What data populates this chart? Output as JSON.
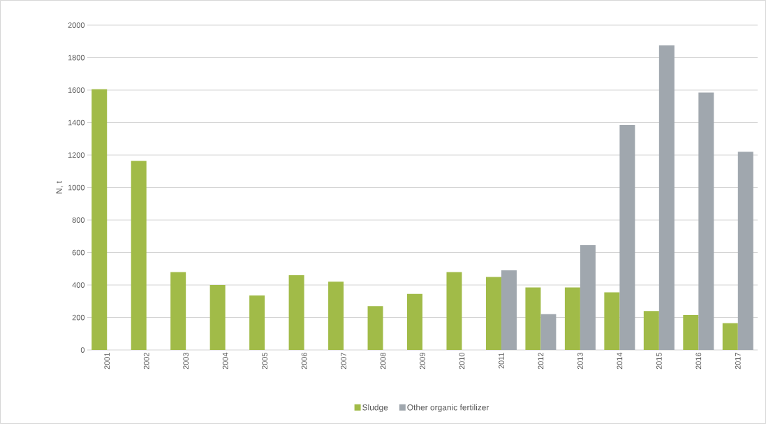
{
  "chart_data": {
    "type": "bar",
    "ylabel": "N, t",
    "categories": [
      "2001",
      "2002",
      "2003",
      "2004",
      "2005",
      "2006",
      "2007",
      "2008",
      "2009",
      "2010",
      "2011",
      "2012",
      "2013",
      "2014",
      "2015",
      "2016",
      "2017"
    ],
    "series": [
      {
        "name": "Sludge",
        "color": "#a1bb48",
        "values": [
          1605,
          1165,
          480,
          400,
          335,
          460,
          420,
          270,
          345,
          480,
          450,
          385,
          385,
          355,
          240,
          215,
          165
        ]
      },
      {
        "name": "Other organic fertilizer",
        "color": "#a0a7ae",
        "values": [
          null,
          null,
          null,
          null,
          null,
          null,
          null,
          null,
          null,
          null,
          490,
          220,
          645,
          1385,
          1875,
          1585,
          1220
        ]
      }
    ],
    "ylim": [
      0,
      2000
    ],
    "yticks": [
      0,
      200,
      400,
      600,
      800,
      1000,
      1200,
      1400,
      1600,
      1800,
      2000
    ],
    "grid": "y",
    "legend": "bottom"
  }
}
